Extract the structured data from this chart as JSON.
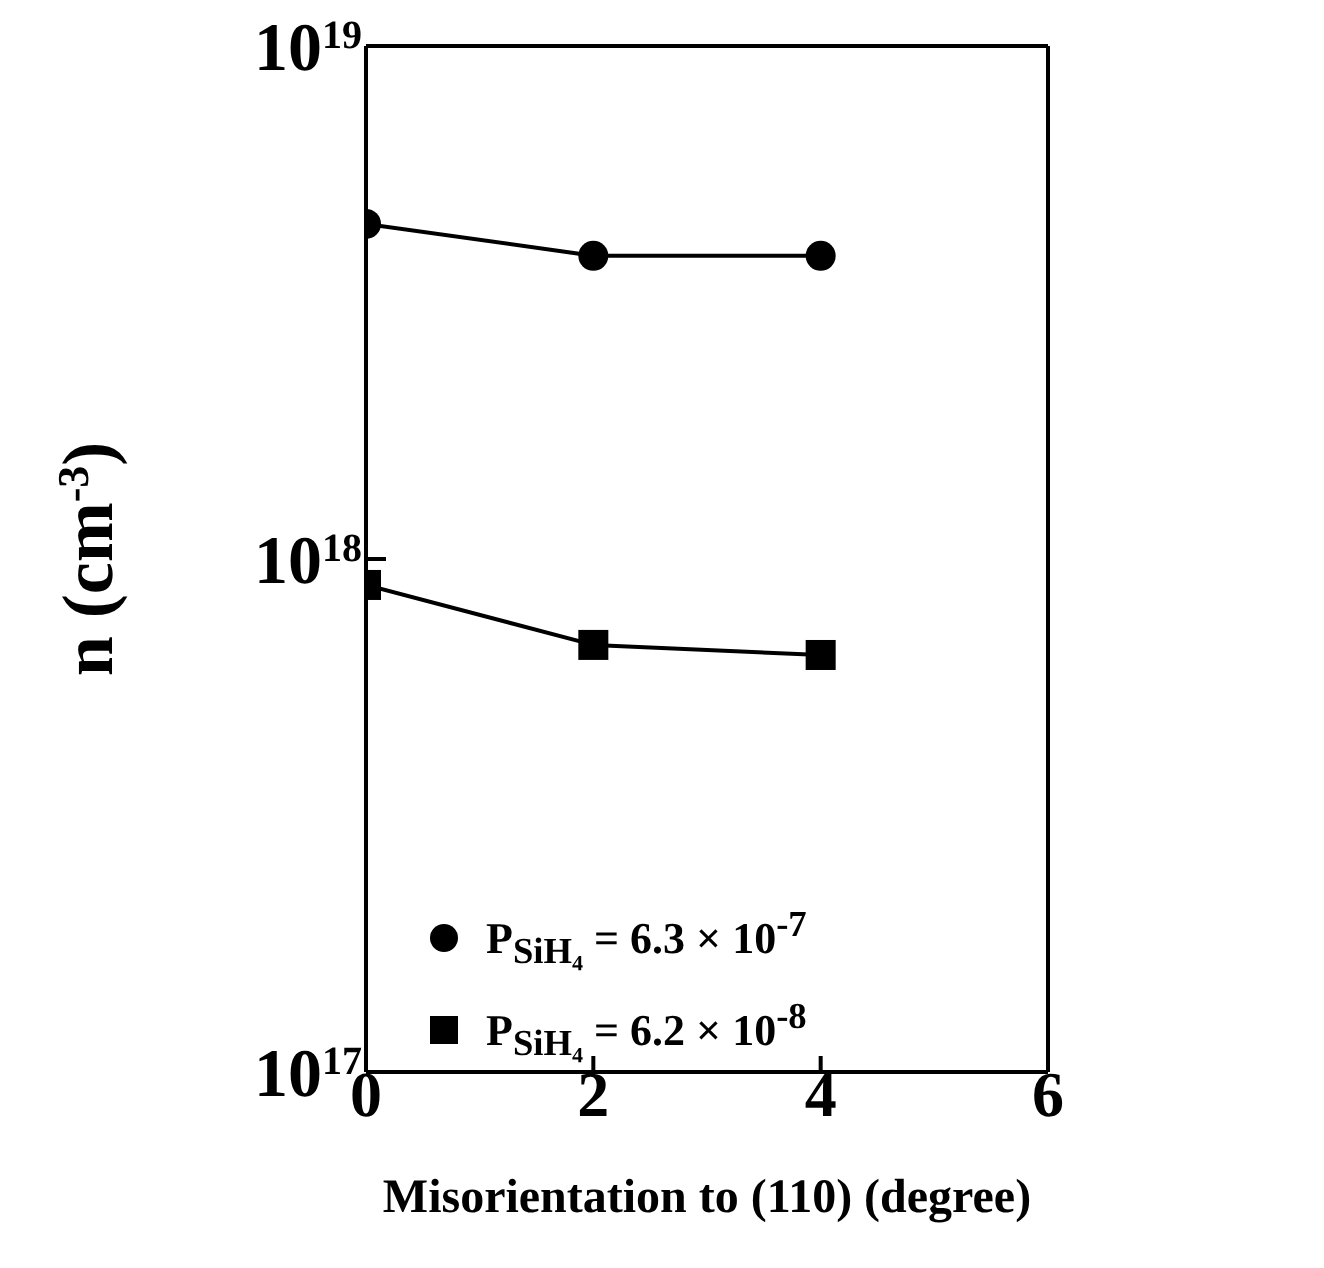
{
  "chart_data": {
    "type": "line",
    "xlabel": "Misorientation to (110) (degree)",
    "ylabel": "n (cm$^{-3}$)",
    "x": [
      0,
      2,
      4
    ],
    "series": [
      {
        "name": "P$_{SiH₄}$ = 6.3 × 10$^{-7}$",
        "color": "#000000",
        "marker": "circle",
        "values": [
          4.5e+18,
          3.9e+18,
          3.9e+18
        ]
      },
      {
        "name": "P$_{SiH₄}$ = 6.2 × 10$^{-8}$",
        "color": "#000000",
        "marker": "square",
        "values": [
          8.9e+17,
          6.8e+17,
          6.5e+17
        ]
      }
    ],
    "xlim": [
      0,
      6
    ],
    "xticks": [
      0,
      2,
      4,
      6
    ],
    "ylim": [
      1e+17,
      1e+19
    ],
    "yticks": [
      {
        "value": 1e+17,
        "label": "10$^{17}$"
      },
      {
        "value": 1e+18,
        "label": "10$^{18}$"
      },
      {
        "value": 1e+19,
        "label": "10$^{19}$"
      }
    ],
    "log": "y",
    "grid": false,
    "legend": "bottom",
    "line_style": "solid"
  }
}
